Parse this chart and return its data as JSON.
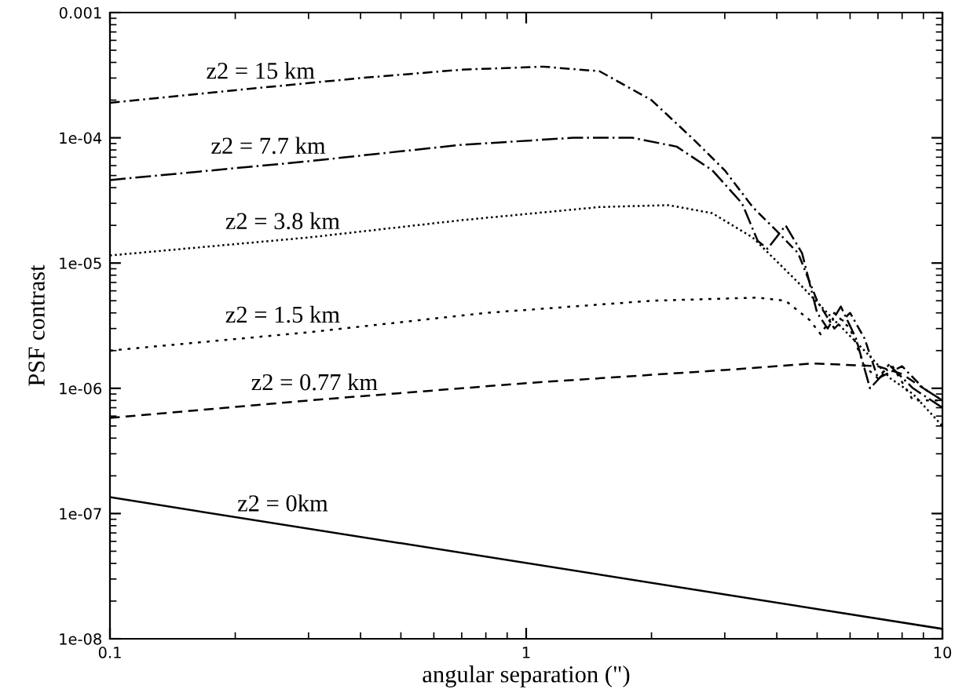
{
  "chart_data": {
    "type": "line",
    "xlabel": "angular separation (\")",
    "ylabel": "PSF contrast",
    "log": "xy",
    "grid": false,
    "legend": false,
    "xlim": [
      0.1,
      10
    ],
    "xticks": [
      0.1,
      1,
      10
    ],
    "ylim": [
      1e-08,
      0.001
    ],
    "yticks": [
      {
        "value": 1e-08,
        "label": "1e-08"
      },
      {
        "value": 1e-07,
        "label": "1e-07"
      },
      {
        "value": 1e-06,
        "label": "1e-06"
      },
      {
        "value": 1e-05,
        "label": "1e-05"
      },
      {
        "value": 0.0001,
        "label": "1e-04"
      },
      {
        "value": 0.001,
        "label": "0.001"
      }
    ],
    "series": [
      {
        "line_style": "dashdot",
        "color": "#000000",
        "x": [
          0.1,
          0.2,
          0.4,
          0.7,
          1.1,
          1.5,
          2,
          2.5,
          3,
          3.5,
          4,
          4.5,
          5,
          5.5,
          6,
          6.5,
          7,
          8,
          9,
          10
        ],
        "values": [
          0.00019,
          0.00024,
          0.0003,
          0.00035,
          0.00037,
          0.00034,
          0.0002,
          0.0001,
          5.5e-05,
          2.8e-05,
          1.8e-05,
          1.2e-05,
          5e-06,
          3e-06,
          4e-06,
          2.5e-06,
          1.2e-06,
          1.5e-06,
          1e-06,
          8e-07
        ]
      },
      {
        "line_style": "longdashdot",
        "color": "#000000",
        "x": [
          0.1,
          0.3,
          0.7,
          1.3,
          1.8,
          2.3,
          2.8,
          3.3,
          3.6,
          3.8,
          4.2,
          4.6,
          5.0,
          5.3,
          5.7,
          6.2,
          6.7,
          7.5,
          8.5,
          10
        ],
        "values": [
          4.6e-05,
          6.5e-05,
          8.8e-05,
          0.0001,
          0.0001,
          8.5e-05,
          5.5e-05,
          3e-05,
          1.5e-05,
          1.3e-05,
          2e-05,
          1.2e-05,
          4e-06,
          3e-06,
          4.5e-06,
          2.5e-06,
          1e-06,
          1.5e-06,
          1e-06,
          7e-07
        ]
      },
      {
        "line_style": "dotted",
        "color": "#000000",
        "x": [
          0.1,
          0.3,
          0.7,
          1.5,
          2.2,
          2.8,
          3.5,
          4.5,
          5.5,
          6.5,
          7.5,
          8.5,
          10
        ],
        "values": [
          1.15e-05,
          1.6e-05,
          2.2e-05,
          2.8e-05,
          2.9e-05,
          2.5e-05,
          1.6e-05,
          7e-06,
          3.5e-06,
          2e-06,
          1.2e-06,
          9e-07,
          5e-07
        ]
      },
      {
        "line_style": "coarsedotted",
        "color": "#000000",
        "x": [
          0.1,
          0.3,
          0.8,
          2,
          3.6,
          4.2,
          4.8,
          5.1,
          5.5,
          6,
          6.5,
          7,
          7.5,
          8.5,
          10
        ],
        "values": [
          2e-06,
          2.8e-06,
          4e-06,
          5e-06,
          5.3e-06,
          5e-06,
          3.5e-06,
          2.7e-06,
          4e-06,
          3e-06,
          1.5e-06,
          1.2e-06,
          1.6e-06,
          8e-07,
          8e-07
        ]
      },
      {
        "line_style": "dashed",
        "color": "#000000",
        "x": [
          0.1,
          0.3,
          1,
          3,
          4.9,
          7,
          8,
          9,
          10
        ],
        "values": [
          5.8e-07,
          8e-07,
          1.1e-06,
          1.4e-06,
          1.58e-06,
          1.5e-06,
          1.3e-06,
          1e-06,
          8e-07
        ]
      },
      {
        "line_style": "solid",
        "color": "#000000",
        "x": [
          0.1,
          10
        ],
        "values": [
          1.35e-07,
          1.2e-08
        ]
      }
    ],
    "annotations": [
      {
        "text": "z2 = 15 km",
        "x": 0.23,
        "y": 0.00023
      },
      {
        "text": "z2 = 7.7 km",
        "x": 0.24,
        "y": 5.8e-05
      },
      {
        "text": "z2 = 3.8 km",
        "x": 0.26,
        "y": 1.45e-05
      },
      {
        "text": "z2 = 1.5 km",
        "x": 0.26,
        "y": 2.6e-06
      },
      {
        "text": "z2 = 0.77 km",
        "x": 0.31,
        "y": 7.5e-07
      },
      {
        "text": "z2 = 0km",
        "x": 0.26,
        "y": 8.1e-08
      }
    ]
  }
}
